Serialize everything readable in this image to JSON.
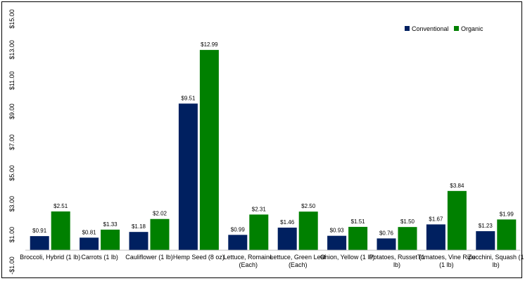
{
  "chart_data": {
    "type": "bar",
    "categories": [
      [
        "Broccoli, Hybrid (1 lb)"
      ],
      [
        "Carrots (1 lb)"
      ],
      [
        "Cauliflower (1 lb)"
      ],
      [
        "Hemp Seed (8 oz)"
      ],
      [
        "Lettuce, Romaine",
        "(Each)"
      ],
      [
        "Lettuce, Green Leaf",
        "(Each)"
      ],
      [
        "Onion, Yellow (1 lb)"
      ],
      [
        "Potatoes, Russet (1",
        "lb)"
      ],
      [
        "Tomatoes, Vine Ripe",
        "(1 lb)"
      ],
      [
        "Zucchini, Squash (1",
        "lb)"
      ]
    ],
    "series": [
      {
        "name": "Conventional",
        "color": "#002060",
        "values": [
          0.91,
          0.81,
          1.18,
          9.51,
          0.99,
          1.46,
          0.93,
          0.76,
          1.67,
          1.23
        ],
        "labels": [
          "$0.91",
          "$0.81",
          "$1.18",
          "$9.51",
          "$0.99",
          "$1.46",
          "$0.93",
          "$0.76",
          "$1.67",
          "$1.23"
        ]
      },
      {
        "name": "Organic",
        "color": "#008000",
        "values": [
          2.51,
          1.33,
          2.02,
          12.99,
          2.31,
          2.5,
          1.51,
          1.5,
          3.84,
          1.99
        ],
        "labels": [
          "$2.51",
          "$1.33",
          "$2.02",
          "$12.99",
          "$2.31",
          "$2.50",
          "$1.51",
          "$1.50",
          "$3.84",
          "$1.99"
        ]
      }
    ],
    "yticks": [
      -1,
      1,
      3,
      5,
      7,
      9,
      11,
      13,
      15
    ],
    "ytick_labels": [
      "-$1.00",
      "$1.00",
      "$3.00",
      "$5.00",
      "$7.00",
      "$9.00",
      "$11.00",
      "$13.00",
      "$15.00"
    ],
    "ylim": [
      -1,
      15
    ],
    "baseline": 0,
    "grid": false,
    "legend_position": "top-right",
    "title": "",
    "xlabel": "",
    "ylabel": ""
  }
}
